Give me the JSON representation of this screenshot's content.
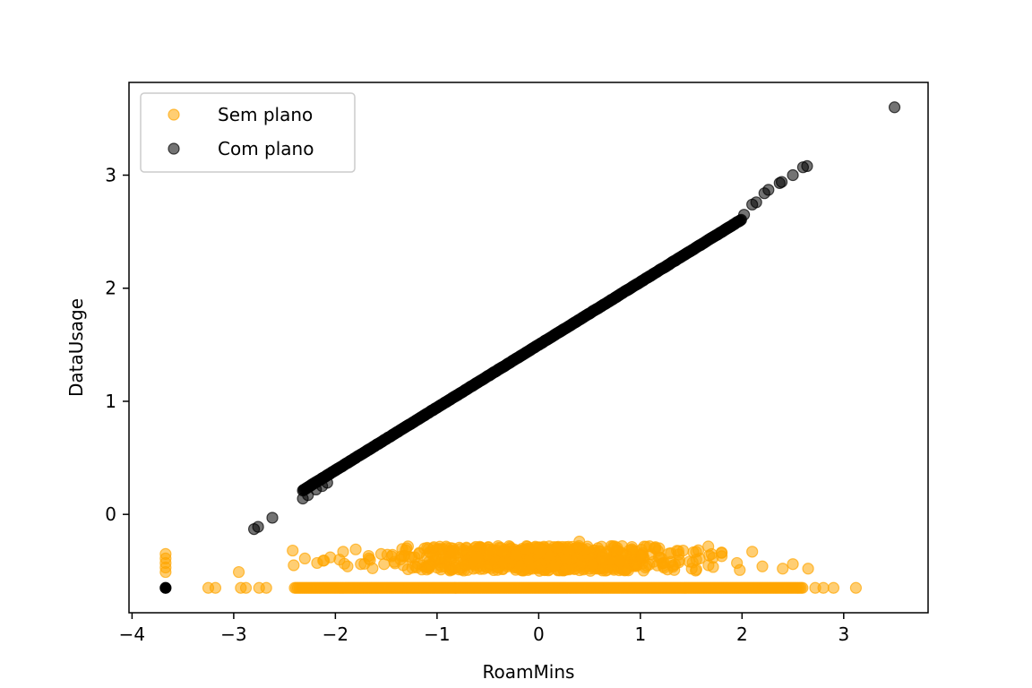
{
  "chart_data": {
    "type": "scatter",
    "title": "",
    "xlabel": "RoamMins",
    "ylabel": "DataUsage",
    "xlim": [
      -4.03,
      3.83
    ],
    "ylim": [
      -0.87,
      3.82
    ],
    "xticks": [
      -4,
      -3,
      -2,
      -1,
      0,
      1,
      2,
      3
    ],
    "yticks": [
      0,
      1,
      2,
      3
    ],
    "xtick_labels": [
      "−4",
      "−3",
      "−2",
      "−1",
      "0",
      "1",
      "2",
      "3"
    ],
    "ytick_labels": [
      "0",
      "1",
      "2",
      "3"
    ],
    "grid": false,
    "legend_position": "top-left",
    "series": [
      {
        "name": "Sem plano",
        "color": "#FFA500",
        "alpha": 0.55,
        "approx_count": 2400,
        "description_of_shape": "horizontal band at y=-0.65 for x in [-3.3, 3.1]; diffuse cloud between y=-0.50 and y=-0.25 concentrated for x in [-2.5, 2.7]; a few points at x=-3.67 with y between -0.50 and -0.35",
        "points": [
          [
            -3.67,
            -0.35
          ],
          [
            -3.67,
            -0.39
          ],
          [
            -3.67,
            -0.43
          ],
          [
            -3.67,
            -0.47
          ],
          [
            -3.67,
            -0.51
          ],
          [
            -3.25,
            -0.65
          ],
          [
            -3.18,
            -0.65
          ],
          [
            -2.95,
            -0.51
          ],
          [
            -2.93,
            -0.65
          ],
          [
            -2.88,
            -0.65
          ],
          [
            -2.75,
            -0.65
          ],
          [
            -2.68,
            -0.65
          ],
          [
            -2.42,
            -0.32
          ],
          [
            -2.41,
            -0.45
          ],
          [
            -2.3,
            -0.39
          ],
          [
            -2.18,
            -0.43
          ],
          [
            -2.12,
            -0.41
          ],
          [
            -2.05,
            -0.38
          ],
          [
            -1.96,
            -0.4
          ],
          [
            -1.88,
            -0.46
          ],
          [
            -1.8,
            -0.31
          ],
          [
            -1.75,
            -0.44
          ],
          [
            -1.67,
            -0.39
          ],
          [
            -1.55,
            -0.35
          ],
          [
            -1.42,
            -0.42
          ],
          [
            -1.3,
            -0.3
          ],
          [
            -1.2,
            -0.47
          ],
          [
            -1.1,
            -0.37
          ],
          [
            -0.98,
            -0.4
          ],
          [
            -0.85,
            -0.33
          ],
          [
            -0.72,
            -0.45
          ],
          [
            -0.6,
            -0.38
          ],
          [
            -0.48,
            -0.31
          ],
          [
            -0.35,
            -0.43
          ],
          [
            -0.22,
            -0.36
          ],
          [
            -0.1,
            -0.41
          ],
          [
            0.02,
            -0.34
          ],
          [
            0.15,
            -0.46
          ],
          [
            0.27,
            -0.39
          ],
          [
            0.4,
            -0.24
          ],
          [
            0.53,
            -0.44
          ],
          [
            0.66,
            -0.35
          ],
          [
            0.8,
            -0.41
          ],
          [
            0.93,
            -0.33
          ],
          [
            1.05,
            -0.47
          ],
          [
            1.18,
            -0.38
          ],
          [
            1.3,
            -0.42
          ],
          [
            1.42,
            -0.32
          ],
          [
            1.55,
            -0.4
          ],
          [
            1.67,
            -0.45
          ],
          [
            1.8,
            -0.37
          ],
          [
            1.95,
            -0.43
          ],
          [
            2.1,
            -0.33
          ],
          [
            2.2,
            -0.46
          ],
          [
            2.4,
            -0.48
          ],
          [
            2.5,
            -0.44
          ],
          [
            2.65,
            -0.48
          ],
          [
            2.72,
            -0.65
          ],
          [
            2.8,
            -0.65
          ],
          [
            2.9,
            -0.65
          ],
          [
            3.12,
            -0.65
          ]
        ],
        "band": {
          "y": -0.65,
          "x_from": -2.4,
          "x_to": 2.6,
          "step": 0.015
        },
        "cloud": {
          "x_center": 0.0,
          "x_spread": 1.05,
          "x_min": -2.35,
          "x_max": 2.6,
          "y_min": -0.5,
          "y_max": -0.28,
          "count": 700
        }
      },
      {
        "name": "Com plano",
        "color": "#000000",
        "alpha": 0.55,
        "approx_count": 800,
        "description_of_shape": "points along the straight line y = 0.555*x + 1.50 for x from -2.8 to 2.65, plus an outlier at (3.5, 3.6) and one at (-3.67, -0.65)",
        "line": {
          "slope": 0.555,
          "intercept": 1.5,
          "x_from": -2.32,
          "x_to": 2.0,
          "step": 0.008
        },
        "points": [
          [
            -2.8,
            -0.13
          ],
          [
            -2.76,
            -0.11
          ],
          [
            -2.62,
            -0.03
          ],
          [
            -2.32,
            0.14
          ],
          [
            -2.27,
            0.17
          ],
          [
            -2.19,
            0.22
          ],
          [
            -2.13,
            0.25
          ],
          [
            -2.08,
            0.28
          ],
          [
            2.02,
            2.65
          ],
          [
            2.1,
            2.74
          ],
          [
            2.14,
            2.76
          ],
          [
            2.22,
            2.84
          ],
          [
            2.26,
            2.87
          ],
          [
            2.37,
            2.93
          ],
          [
            2.39,
            2.94
          ],
          [
            2.5,
            3.0
          ],
          [
            2.6,
            3.07
          ],
          [
            2.64,
            3.08
          ],
          [
            3.5,
            3.6
          ],
          [
            -3.67,
            -0.65
          ]
        ]
      }
    ]
  }
}
